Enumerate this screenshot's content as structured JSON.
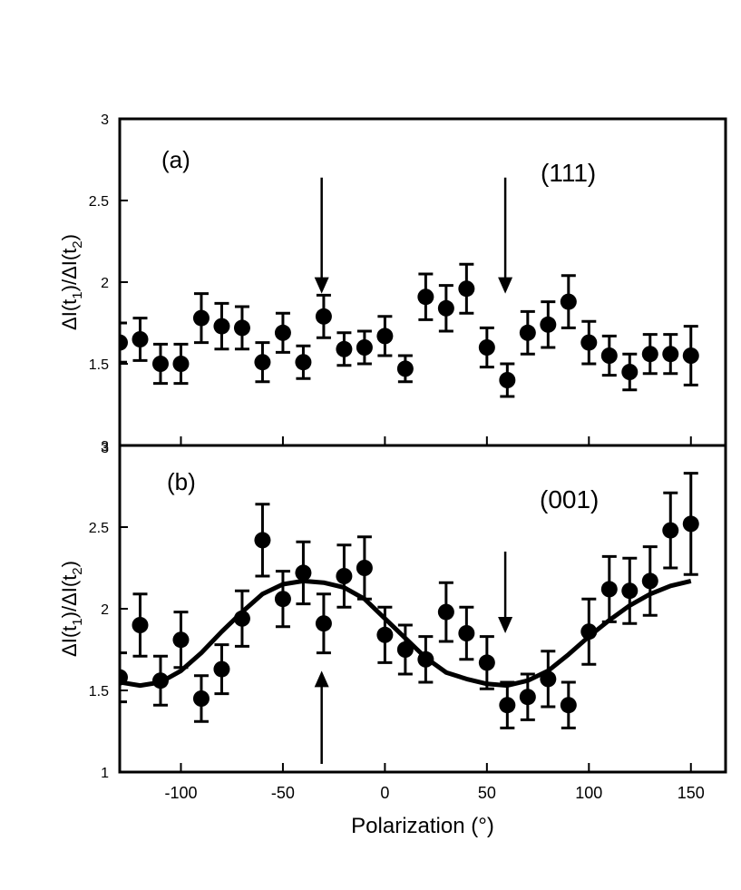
{
  "chart_data": [
    {
      "panel": "a",
      "type": "scatter",
      "label": "(a)",
      "annotation": "(111)",
      "xlabel": "Polarization (°)",
      "ylabel_main": "ΔI(t",
      "ylabel_sub1": "1",
      "ylabel_mid": ")/ΔI(t",
      "ylabel_sub2": "2",
      "ylabel_end": ")",
      "xlim": [
        -130,
        167
      ],
      "ylim": [
        1.0,
        3.0
      ],
      "yticks": [
        "1.5",
        "2",
        "2.5",
        "3"
      ],
      "ytick_values": [
        1.5,
        2,
        2.5,
        3
      ],
      "bottom_tick_label": "3",
      "x": [
        -130,
        -120,
        -110,
        -100,
        -90,
        -80,
        -70,
        -60,
        -50,
        -40,
        -30,
        -20,
        -10,
        0,
        10,
        20,
        30,
        40,
        50,
        60,
        70,
        80,
        90,
        100,
        110,
        120,
        130,
        140,
        150
      ],
      "y": [
        1.63,
        1.65,
        1.5,
        1.5,
        1.78,
        1.73,
        1.72,
        1.51,
        1.69,
        1.51,
        1.79,
        1.59,
        1.6,
        1.67,
        1.47,
        1.91,
        1.84,
        1.96,
        1.6,
        1.4,
        1.69,
        1.74,
        1.88,
        1.63,
        1.55,
        1.45,
        1.56,
        1.56,
        1.55
      ],
      "err": [
        0.12,
        0.13,
        0.12,
        0.12,
        0.15,
        0.14,
        0.13,
        0.12,
        0.12,
        0.1,
        0.13,
        0.1,
        0.1,
        0.12,
        0.08,
        0.14,
        0.14,
        0.15,
        0.12,
        0.1,
        0.13,
        0.14,
        0.16,
        0.13,
        0.12,
        0.11,
        0.12,
        0.12,
        0.18
      ],
      "arrows": [
        {
          "x": -31,
          "from": 2.64,
          "to": 1.93,
          "direction": "down"
        },
        {
          "x": 59,
          "from": 2.64,
          "to": 1.93,
          "direction": "down"
        }
      ]
    },
    {
      "panel": "b",
      "type": "scatter",
      "label": "(b)",
      "annotation": "(001)",
      "xlabel": "Polarization (°)",
      "ylabel_main": "ΔI(t",
      "ylabel_sub1": "1",
      "ylabel_mid": ")/ΔI(t",
      "ylabel_sub2": "2",
      "ylabel_end": ")",
      "xlim": [
        -130,
        167
      ],
      "ylim": [
        1.0,
        3.0
      ],
      "yticks": [
        "1",
        "1.5",
        "2",
        "2.5",
        "3"
      ],
      "ytick_values": [
        1,
        1.5,
        2,
        2.5,
        3
      ],
      "xticks": [
        "-100",
        "-50",
        "0",
        "50",
        "100",
        "150"
      ],
      "xtick_values": [
        -100,
        -50,
        0,
        50,
        100,
        150
      ],
      "x": [
        -130,
        -120,
        -110,
        -100,
        -90,
        -80,
        -70,
        -60,
        -50,
        -40,
        -30,
        -20,
        -10,
        0,
        10,
        20,
        30,
        40,
        50,
        60,
        70,
        80,
        90,
        100,
        110,
        120,
        130,
        140,
        150
      ],
      "y": [
        1.58,
        1.9,
        1.56,
        1.81,
        1.45,
        1.63,
        1.94,
        2.42,
        2.06,
        2.22,
        1.91,
        2.2,
        2.25,
        1.84,
        1.75,
        1.69,
        1.98,
        1.85,
        1.67,
        1.41,
        1.46,
        1.57,
        1.41,
        1.86,
        2.12,
        2.11,
        2.17,
        2.48,
        2.52
      ],
      "err": [
        0.15,
        0.19,
        0.15,
        0.17,
        0.14,
        0.15,
        0.17,
        0.22,
        0.17,
        0.19,
        0.18,
        0.19,
        0.19,
        0.17,
        0.15,
        0.14,
        0.18,
        0.16,
        0.16,
        0.14,
        0.14,
        0.17,
        0.14,
        0.2,
        0.2,
        0.2,
        0.21,
        0.23,
        0.31
      ],
      "fit": {
        "type": "line",
        "x": [
          -130,
          -120,
          -110,
          -100,
          -90,
          -80,
          -70,
          -60,
          -50,
          -40,
          -30,
          -20,
          -10,
          0,
          10,
          20,
          30,
          40,
          50,
          60,
          70,
          80,
          90,
          100,
          110,
          120,
          130,
          140,
          150
        ],
        "y": [
          1.55,
          1.53,
          1.55,
          1.62,
          1.73,
          1.86,
          1.98,
          2.09,
          2.15,
          2.17,
          2.16,
          2.13,
          2.06,
          1.94,
          1.82,
          1.7,
          1.61,
          1.57,
          1.54,
          1.53,
          1.56,
          1.62,
          1.72,
          1.83,
          1.93,
          2.02,
          2.09,
          2.14,
          2.17
        ]
      },
      "arrows": [
        {
          "x": -31,
          "from": 1.05,
          "to": 1.62,
          "direction": "up"
        },
        {
          "x": 59,
          "from": 2.35,
          "to": 1.85,
          "direction": "down"
        }
      ]
    }
  ]
}
